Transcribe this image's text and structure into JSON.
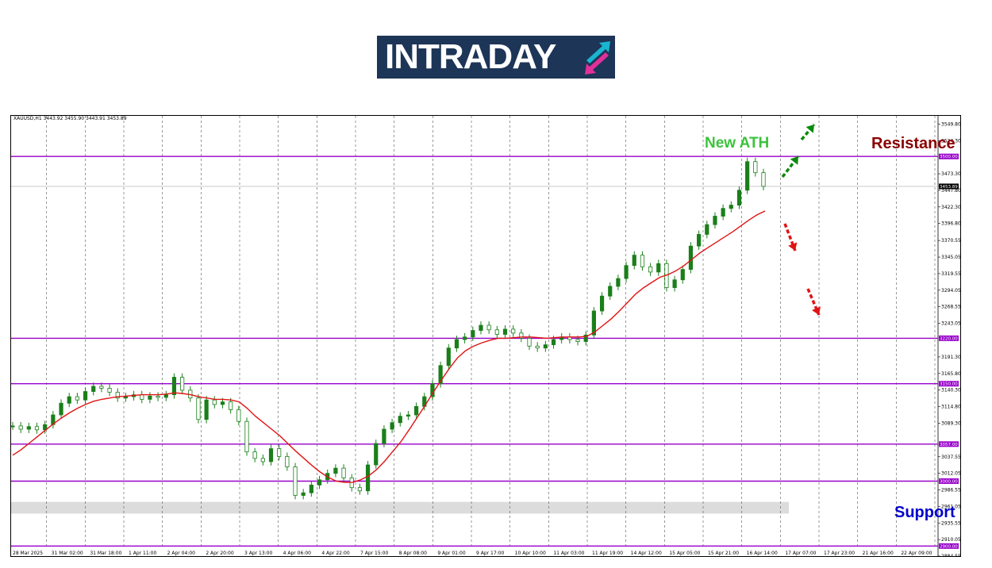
{
  "logo": {
    "text": "INTRADAY",
    "colors": {
      "background": "#1d3557",
      "arrow_up": "#19b5d0",
      "arrow_down": "#e0309a"
    }
  },
  "header": {
    "symbol_info": "XAUUSD,H1  3443.92 3455.90 3443.91 3453.89"
  },
  "annotations": {
    "new_ath": "New ATH",
    "resistance": "Resistance",
    "support": "Support"
  },
  "chart_data": {
    "type": "line",
    "x_tick_labels": [
      "28 Mar 2025",
      "31 Mar 02:00",
      "31 Mar 18:00",
      "1 Apr 11:00",
      "2 Apr 04:00",
      "2 Apr 20:00",
      "3 Apr 13:00",
      "4 Apr 06:00",
      "4 Apr 22:00",
      "7 Apr 15:00",
      "8 Apr 08:00",
      "9 Apr 01:00",
      "9 Apr 17:00",
      "10 Apr 10:00",
      "11 Apr 03:00",
      "11 Apr 19:00",
      "14 Apr 12:00",
      "15 Apr 05:00",
      "15 Apr 21:00",
      "16 Apr 14:00",
      "17 Apr 07:00",
      "17 Apr 23:00",
      "21 Apr 16:00",
      "22 Apr 09:00"
    ],
    "y_tick_labels": [
      "3549.80",
      "3524.30",
      "3473.30",
      "3447.80",
      "3422.30",
      "3396.80",
      "3370.55",
      "3345.05",
      "3319.55",
      "3294.05",
      "3268.55",
      "3243.05",
      "3191.30",
      "3165.80",
      "3140.30",
      "3114.80",
      "3089.30",
      "3037.55",
      "3012.05",
      "2986.55",
      "2961.05",
      "2935.55",
      "2910.05",
      "2884.55"
    ],
    "ylim": [
      2884.55,
      3562.55
    ],
    "price_series": {
      "name": "",
      "values": [
        3085,
        3080,
        3084,
        3079,
        3087,
        3102,
        3120,
        3130,
        3125,
        3138,
        3146,
        3143,
        3137,
        3128,
        3130,
        3133,
        3126,
        3131,
        3129,
        3133,
        3160,
        3140,
        3128,
        3095,
        3125,
        3118,
        3122,
        3110,
        3092,
        3045,
        3035,
        3030,
        3050,
        3038,
        3022,
        2978,
        2982,
        2994,
        3002,
        3012,
        3020,
        3005,
        2990,
        2985,
        3025,
        3058,
        3080,
        3090,
        3100,
        3102,
        3115,
        3130,
        3150,
        3178,
        3205,
        3218,
        3222,
        3232,
        3240,
        3233,
        3226,
        3234,
        3228,
        3220,
        3208,
        3205,
        3210,
        3218,
        3222,
        3218,
        3215,
        3225,
        3262,
        3285,
        3300,
        3312,
        3332,
        3348,
        3330,
        3322,
        3335,
        3298,
        3310,
        3326,
        3362,
        3380,
        3395,
        3408,
        3420,
        3425,
        3448,
        3492,
        3475,
        3453.89
      ]
    },
    "moving_average": {
      "name": "",
      "values": [
        3040,
        3048,
        3058,
        3068,
        3078,
        3088,
        3097,
        3105,
        3112,
        3118,
        3123,
        3126,
        3128,
        3130,
        3131,
        3132,
        3133,
        3133,
        3133,
        3134,
        3136,
        3135,
        3133,
        3130,
        3128,
        3126,
        3126,
        3125,
        3122,
        3112,
        3100,
        3090,
        3080,
        3070,
        3058,
        3046,
        3035,
        3024,
        3014,
        3006,
        3000,
        2998,
        2998,
        3002,
        3008,
        3018,
        3031,
        3046,
        3061,
        3079,
        3098,
        3117,
        3137,
        3156,
        3174,
        3190,
        3201,
        3208,
        3213,
        3217,
        3220,
        3220,
        3221,
        3222,
        3222,
        3221,
        3220,
        3221,
        3222,
        3222,
        3222,
        3223,
        3230,
        3240,
        3250,
        3262,
        3275,
        3288,
        3298,
        3306,
        3314,
        3318,
        3324,
        3332,
        3342,
        3352,
        3360,
        3368,
        3376,
        3384,
        3393,
        3402,
        3410,
        3416
      ]
    },
    "horizontal_levels": [
      {
        "value": 3500.0,
        "label": "3500.00"
      },
      {
        "value": 3220.0,
        "label": "3220.00"
      },
      {
        "value": 3150.0,
        "label": "3150.00"
      },
      {
        "value": 3057.0,
        "label": "3057.00"
      },
      {
        "value": 3000.0,
        "label": "3000.00"
      },
      {
        "value": 2900.0,
        "label": "2900.00"
      }
    ],
    "current_price": {
      "value": 3453.89,
      "label": "3453.89"
    },
    "support_zone": [
      2950,
      2968
    ],
    "grid": true,
    "colors": {
      "candles": "#1a7f1a",
      "moving_average": "#e01414",
      "levels": "#9900cc",
      "support_zone": "#dcdcdc",
      "bull_arrows": "#0a8a0a",
      "bear_arrows": "#e01414"
    }
  }
}
